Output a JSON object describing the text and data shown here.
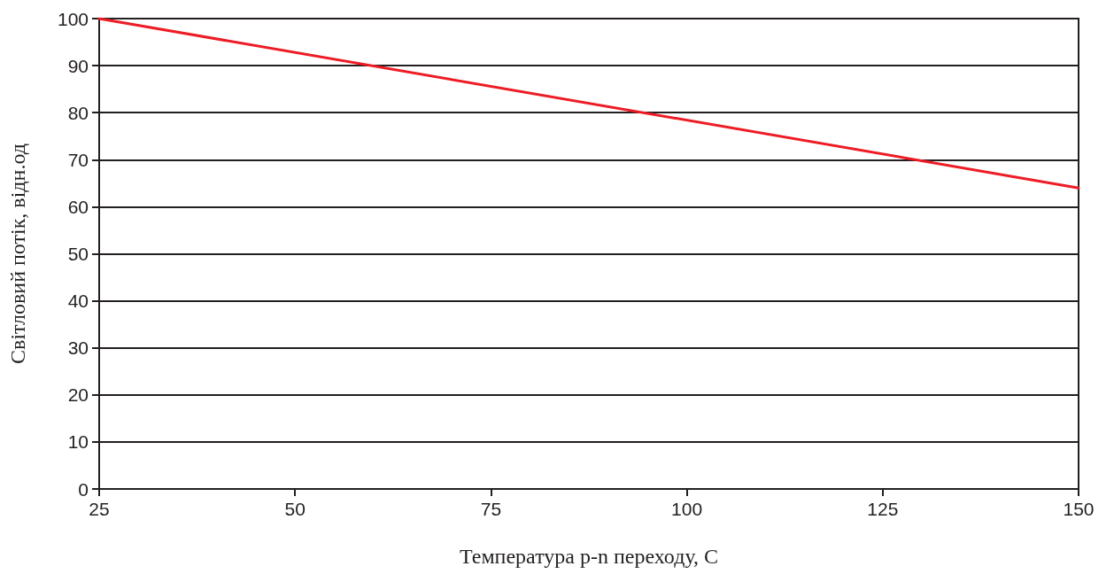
{
  "chart_data": {
    "type": "line",
    "xlabel": "Температура p-n переходу, С",
    "ylabel": "Світловий потік, відн.од",
    "x": [
      25,
      150
    ],
    "series": [
      {
        "color": "#ed1c24",
        "values": [
          100,
          64
        ]
      }
    ],
    "xlim": [
      25,
      150
    ],
    "xticks": [
      25,
      50,
      75,
      100,
      125,
      150
    ],
    "ylim": [
      0,
      100
    ],
    "yticks": [
      0,
      10,
      20,
      30,
      40,
      50,
      60,
      70,
      80,
      90,
      100
    ],
    "grid": "y",
    "marker": "none",
    "line_style": "solid"
  }
}
